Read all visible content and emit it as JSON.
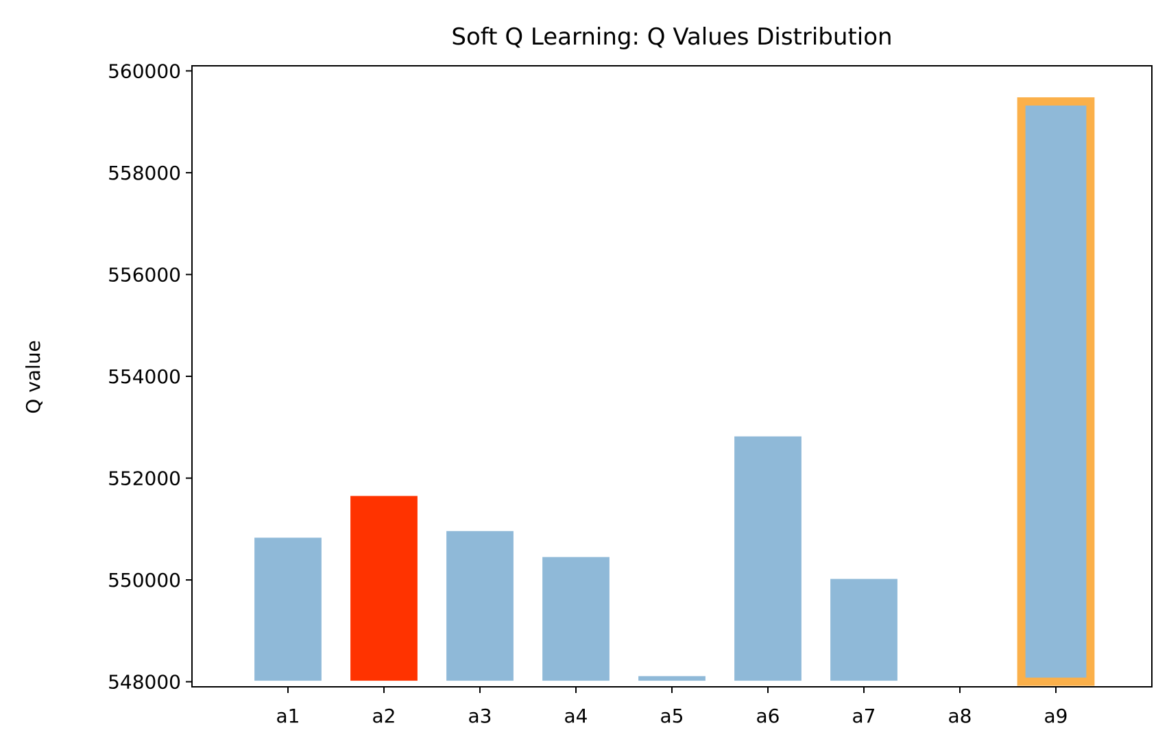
{
  "chart_data": {
    "type": "bar",
    "title": "Soft Q Learning: Q Values Distribution",
    "xlabel": "",
    "ylabel": "Q value",
    "categories": [
      "a1",
      "a2",
      "a3",
      "a4",
      "a5",
      "a6",
      "a7",
      "a8",
      "a9"
    ],
    "values": [
      550850,
      551670,
      550980,
      550470,
      548130,
      552840,
      550040,
      547970,
      559400
    ],
    "ylim": [
      547900,
      560100
    ],
    "yticks": [
      548000,
      550000,
      552000,
      554000,
      556000,
      558000,
      560000
    ],
    "yticklabels": [
      "548000",
      "550000",
      "552000",
      "554000",
      "556000",
      "558000",
      "560000"
    ],
    "grid": false,
    "colors": {
      "default_bar": "#8fb9d8",
      "selected_bar": "#ff3300",
      "highlight_edge": "#fbb04a",
      "axis": "#000000",
      "bar_edge": "#ffffff"
    },
    "selected_index": 1,
    "highlight_index": 8
  }
}
